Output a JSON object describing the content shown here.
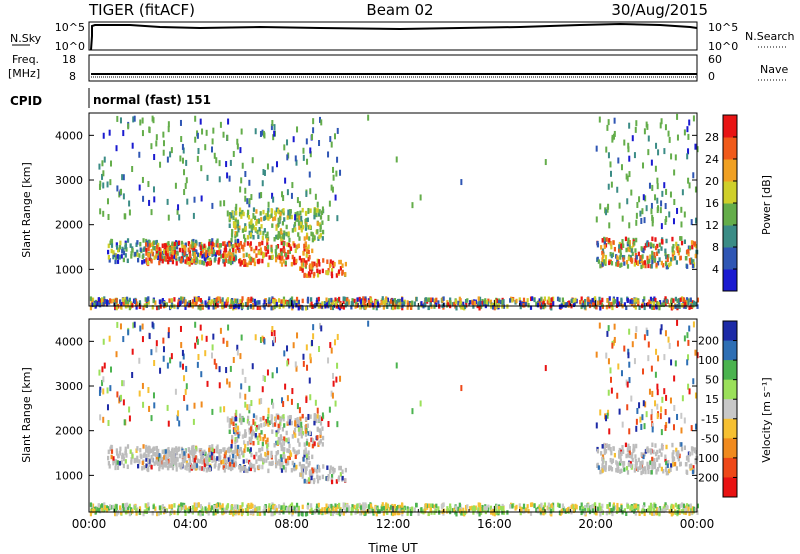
{
  "header": {
    "radar": "TIGER (fitACF)",
    "beam": "Beam 02",
    "date": "30/Aug/2015"
  },
  "status_panels": {
    "nsky": {
      "label": "N.Sky",
      "ticks": [
        "10^5",
        "10^0"
      ],
      "right_label": "N.Search",
      "right_ticks": [
        "10^5",
        "10^0"
      ]
    },
    "freq": {
      "label_top": "Freq.",
      "label_unit": "[MHz]",
      "ticks": [
        "18",
        "8"
      ],
      "right_label": "Nave",
      "right_ticks": [
        "60",
        "0"
      ]
    },
    "cpid": {
      "label": "CPID",
      "value": "normal (fast) 151"
    }
  },
  "colors": {
    "frame": "#000000",
    "bg": "#ffffff"
  },
  "chart_data": [
    {
      "type": "heatmap",
      "name": "power",
      "ylabel": "Slant Range [km]",
      "xlabel": "Time UT",
      "x_ticks": [
        "00:00",
        "04:00",
        "08:00",
        "12:00",
        "16:00",
        "20:00",
        "00:00"
      ],
      "xlim_hours": [
        0,
        24
      ],
      "ylim": [
        180,
        4500
      ],
      "y_ticks": [
        1000,
        2000,
        3000,
        4000
      ],
      "colorbar": {
        "label": "Power [dB]",
        "ticks": [
          "4",
          "8",
          "12",
          "16",
          "20",
          "24",
          "28"
        ],
        "range": [
          0,
          30
        ],
        "colors": [
          "#1a1ad0",
          "#2f56b4",
          "#3b8c86",
          "#64ad4a",
          "#cfcf2a",
          "#f0a022",
          "#f05a1a",
          "#e81414"
        ]
      },
      "echo_regions": [
        {
          "t0": 0.7,
          "t1": 5.9,
          "r0": 1200,
          "r1": 1700,
          "level": "low-mid"
        },
        {
          "t0": 2.2,
          "t1": 8.8,
          "r0": 1150,
          "r1": 1650,
          "level": "high"
        },
        {
          "t0": 5.5,
          "t1": 9.2,
          "r0": 1700,
          "r1": 2400,
          "level": "mid"
        },
        {
          "t0": 8.2,
          "t1": 10.1,
          "r0": 900,
          "r1": 1250,
          "level": "high"
        },
        {
          "t0": 20.0,
          "t1": 24.0,
          "r0": 1100,
          "r1": 1750,
          "level": "mid-high"
        },
        {
          "t0": 0.0,
          "t1": 24.0,
          "r0": 180,
          "r1": 400,
          "level": "ground"
        }
      ]
    },
    {
      "type": "heatmap",
      "name": "velocity",
      "ylabel": "Slant Range [km]",
      "xlabel": "Time UT",
      "x_ticks": [
        "00:00",
        "04:00",
        "08:00",
        "12:00",
        "16:00",
        "20:00",
        "00:00"
      ],
      "xlim_hours": [
        0,
        24
      ],
      "ylim": [
        180,
        4500
      ],
      "y_ticks": [
        1000,
        2000,
        3000,
        4000
      ],
      "colorbar": {
        "label": "Velocity [m s⁻¹]",
        "ticks": [
          "200",
          "100",
          "50",
          "15",
          "-15",
          "-50",
          "-100",
          "-200"
        ],
        "range": [
          -250,
          250
        ],
        "colors": [
          "#1c2aa6",
          "#2e6fb4",
          "#4bb34f",
          "#9be05a",
          "#c8c8c8",
          "#f6c032",
          "#f08a1e",
          "#ee4818",
          "#e81212"
        ]
      },
      "ground_scatter_color": "#bcbcbc"
    }
  ]
}
